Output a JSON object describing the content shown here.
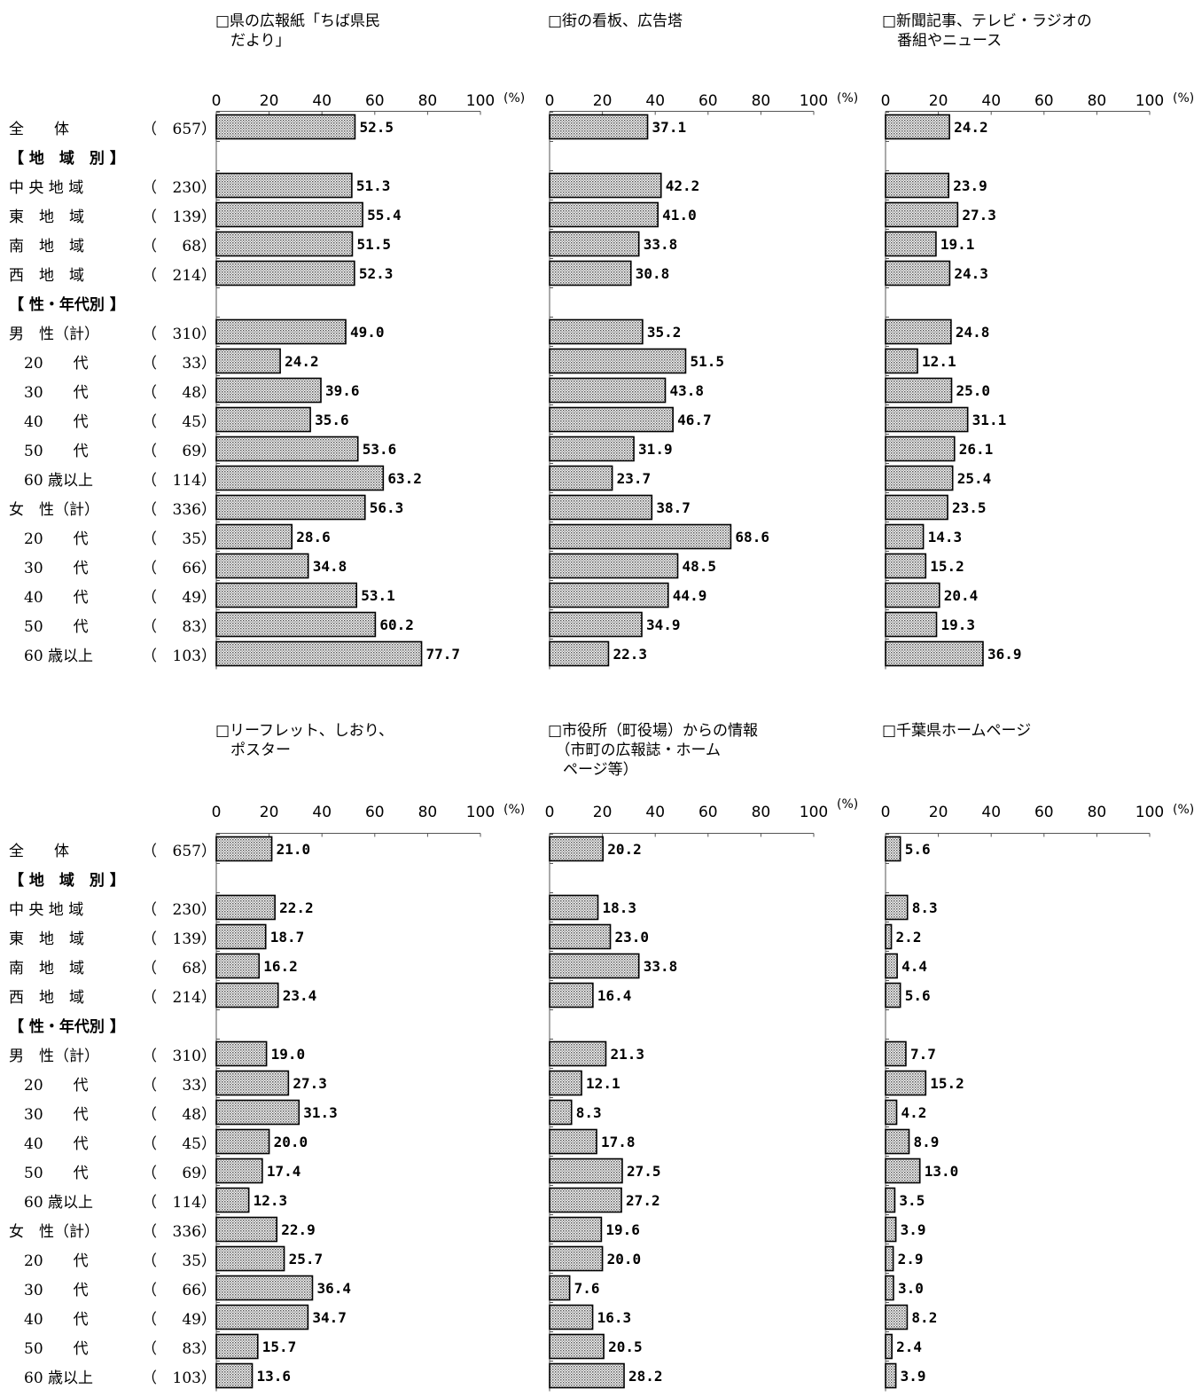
{
  "rows": [
    {
      "label": "全　　体",
      "n": "657"
    },
    {
      "label": "【 地　域　別 】",
      "n": "",
      "section": true
    },
    {
      "label": "中 央 地 域",
      "n": "230"
    },
    {
      "label": "東　地　域",
      "n": "139"
    },
    {
      "label": "南　地　域",
      "n": "68"
    },
    {
      "label": "西　地　域",
      "n": "214"
    },
    {
      "label": "【 性・年代別 】",
      "n": "",
      "section": true
    },
    {
      "label": "男　性（計）",
      "n": "310"
    },
    {
      "label": "　20　　代",
      "n": "33"
    },
    {
      "label": "　30　　代",
      "n": "48"
    },
    {
      "label": "　40　　代",
      "n": "45"
    },
    {
      "label": "　50　　代",
      "n": "69"
    },
    {
      "label": "　60 歳以上",
      "n": "114"
    },
    {
      "label": "女　性（計）",
      "n": "336"
    },
    {
      "label": "　20　　代",
      "n": "35"
    },
    {
      "label": "　30　　代",
      "n": "66"
    },
    {
      "label": "　40　　代",
      "n": "49"
    },
    {
      "label": "　50　　代",
      "n": "83"
    },
    {
      "label": "　60 歳以上",
      "n": "103"
    }
  ],
  "axis": {
    "ticks": [
      "0",
      "20",
      "40",
      "60",
      "80",
      "100"
    ],
    "unit": "(%)",
    "xlim": [
      0,
      100
    ]
  },
  "colors": {
    "bar_fill": "#d9d9d9",
    "bar_stroke": "#000000"
  },
  "chart_data": [
    {
      "type": "bar",
      "orientation": "horizontal",
      "title": "□県の広報紙「ちば県民\n　だより」",
      "values": [
        52.5,
        null,
        51.3,
        55.4,
        51.5,
        52.3,
        null,
        49.0,
        24.2,
        39.6,
        35.6,
        53.6,
        63.2,
        56.3,
        28.6,
        34.8,
        53.1,
        60.2,
        77.7
      ],
      "value_labels": [
        "52.5",
        "",
        "51.3",
        "55.4",
        "51.5",
        "52.3",
        "",
        "49.0",
        "24.2",
        "39.6",
        "35.6",
        "53.6",
        "63.2",
        "56.3",
        "28.6",
        "34.8",
        "53.1",
        "60.2",
        "77.7"
      ]
    },
    {
      "type": "bar",
      "orientation": "horizontal",
      "title": "□街の看板、広告塔",
      "values": [
        37.1,
        null,
        42.2,
        41.0,
        33.8,
        30.8,
        null,
        35.2,
        51.5,
        43.8,
        46.7,
        31.9,
        23.7,
        38.7,
        68.6,
        48.5,
        44.9,
        34.9,
        22.3
      ],
      "value_labels": [
        "37.1",
        "",
        "42.2",
        "41.0",
        "33.8",
        "30.8",
        "",
        "35.2",
        "51.5",
        "43.8",
        "46.7",
        "31.9",
        "23.7",
        "38.7",
        "68.6",
        "48.5",
        "44.9",
        "34.9",
        "22.3"
      ]
    },
    {
      "type": "bar",
      "orientation": "horizontal",
      "title": "□新聞記事、テレビ・ラジオの\n　番組やニュース",
      "values": [
        24.2,
        null,
        23.9,
        27.3,
        19.1,
        24.3,
        null,
        24.8,
        12.1,
        25.0,
        31.1,
        26.1,
        25.4,
        23.5,
        14.3,
        15.2,
        20.4,
        19.3,
        36.9
      ],
      "value_labels": [
        "24.2",
        "",
        "23.9",
        "27.3",
        "19.1",
        "24.3",
        "",
        "24.8",
        "12.1",
        "25.0",
        "31.1",
        "26.1",
        "25.4",
        "23.5",
        "14.3",
        "15.2",
        "20.4",
        "19.3",
        "36.9"
      ]
    },
    {
      "type": "bar",
      "orientation": "horizontal",
      "title": "□リーフレット、しおり、\n　ポスター",
      "values": [
        21.0,
        null,
        22.2,
        18.7,
        16.2,
        23.4,
        null,
        19.0,
        27.3,
        31.3,
        20.0,
        17.4,
        12.3,
        22.9,
        25.7,
        36.4,
        34.7,
        15.7,
        13.6
      ],
      "value_labels": [
        "21.0",
        "",
        "22.2",
        "18.7",
        "16.2",
        "23.4",
        "",
        "19.0",
        "27.3",
        "31.3",
        "20.0",
        "17.4",
        "12.3",
        "22.9",
        "25.7",
        "36.4",
        "34.7",
        "15.7",
        "13.6"
      ]
    },
    {
      "type": "bar",
      "orientation": "horizontal",
      "title": "□市役所（町役場）からの情報\n　（市町の広報誌・ホーム\n　ページ等）",
      "values": [
        20.2,
        null,
        18.3,
        23.0,
        33.8,
        16.4,
        null,
        21.3,
        12.1,
        8.3,
        17.8,
        27.5,
        27.2,
        19.6,
        20.0,
        7.6,
        16.3,
        20.5,
        28.2
      ],
      "value_labels": [
        "20.2",
        "",
        "18.3",
        "23.0",
        "33.8",
        "16.4",
        "",
        "21.3",
        "12.1",
        "8.3",
        "17.8",
        "27.5",
        "27.2",
        "19.6",
        "20.0",
        "7.6",
        "16.3",
        "20.5",
        "28.2"
      ]
    },
    {
      "type": "bar",
      "orientation": "horizontal",
      "title": "□千葉県ホームページ",
      "values": [
        5.6,
        null,
        8.3,
        2.2,
        4.4,
        5.6,
        null,
        7.7,
        15.2,
        4.2,
        8.9,
        13.0,
        3.5,
        3.9,
        2.9,
        3.0,
        8.2,
        2.4,
        3.9
      ],
      "value_labels": [
        "5.6",
        "",
        "8.3",
        "2.2",
        "4.4",
        "5.6",
        "",
        "7.7",
        "15.2",
        "4.2",
        "8.9",
        "13.0",
        "3.5",
        "3.9",
        "2.9",
        "3.0",
        "8.2",
        "2.4",
        "3.9"
      ]
    }
  ]
}
